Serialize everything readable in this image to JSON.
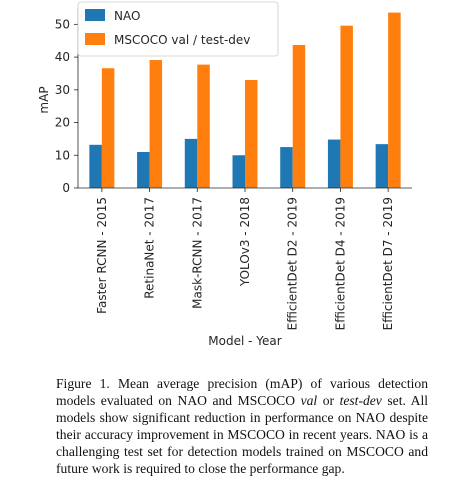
{
  "chart_data": {
    "type": "bar",
    "categories": [
      "Faster RCNN - 2015",
      "RetinaNet - 2017",
      "Mask-RCNN - 2017",
      "YOLOv3 - 2018",
      "EfficientDet D2 - 2019",
      "EfficientDet D4 - 2019",
      "EfficientDet D7 - 2019"
    ],
    "series": [
      {
        "name": "NAO",
        "color": "#1f77b4",
        "values": [
          13.2,
          11.0,
          15.0,
          10.0,
          12.5,
          14.8,
          13.4
        ]
      },
      {
        "name": "MSCOCO val / test-dev",
        "color": "#ff7f0e",
        "values": [
          36.6,
          39.1,
          37.7,
          33.0,
          43.7,
          49.6,
          53.6
        ]
      }
    ],
    "xlabel": "Model - Year",
    "ylabel": "mAP",
    "ylim": [
      0,
      55
    ],
    "yticks": [
      0,
      10,
      20,
      30,
      40,
      50
    ],
    "grid": false,
    "legend_position": "top-left"
  },
  "caption": {
    "label": "Figure 1.",
    "part1": " Mean average precision (mAP) of various detection models evaluated on NAO and MSCOCO ",
    "val": "val",
    "or": " or ",
    "testdev": "test-dev",
    "part2": " set. All models show significant reduction in performance on NAO despite their accuracy improvement in MSCOCO in recent years. NAO is a challenging test set for detection models trained on MSCOCO and future work is required to close the performance gap."
  }
}
